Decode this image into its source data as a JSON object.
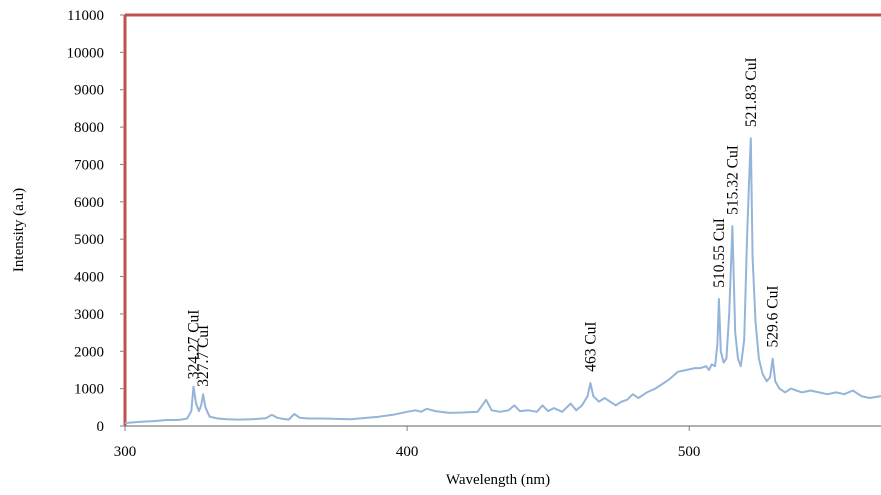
{
  "chart_data": {
    "type": "line",
    "title": "",
    "xlabel": "Wavelength (nm)",
    "ylabel": "Intensity (a.u)",
    "xlim": [
      300,
      568
    ],
    "ylim": [
      0,
      11000
    ],
    "x_ticks": [
      "300",
      "400",
      "500"
    ],
    "y_ticks": [
      "0",
      "1000",
      "2000",
      "3000",
      "4000",
      "5000",
      "6000",
      "7000",
      "8000",
      "9000",
      "10000",
      "11000"
    ],
    "x_tick_values": [
      300,
      400,
      500
    ],
    "y_tick_values": [
      0,
      1000,
      2000,
      3000,
      4000,
      5000,
      6000,
      7000,
      8000,
      9000,
      10000,
      11000
    ],
    "grid": false,
    "series": [
      {
        "color": "#94b4da",
        "x": [
          300,
          305,
          310,
          315,
          318,
          320,
          322,
          323.5,
          324.3,
          325.2,
          326.2,
          327,
          327.7,
          328.5,
          330,
          333,
          336,
          340,
          345,
          350,
          352,
          354,
          356,
          358,
          360,
          362,
          365,
          370,
          380,
          390,
          395,
          400,
          403,
          405,
          407,
          410,
          415,
          420,
          425,
          428,
          430,
          433,
          436,
          438,
          440,
          443,
          446,
          448,
          450,
          452,
          455,
          458,
          460,
          462,
          464,
          465,
          466,
          468,
          470,
          472,
          474,
          476,
          478,
          480,
          482,
          485,
          488,
          490,
          493,
          496,
          499,
          502,
          504,
          506,
          507,
          508,
          509.2,
          510,
          510.55,
          511.2,
          512.2,
          513.2,
          514.2,
          515.32,
          516.3,
          517.3,
          518.3,
          519.5,
          520.5,
          521.2,
          521.83,
          522.5,
          523.5,
          524.7,
          526,
          527.5,
          528.7,
          529.6,
          530.5,
          532,
          534,
          536,
          538,
          540,
          543,
          546,
          549,
          552,
          555,
          558,
          561,
          564,
          568
        ],
        "y": [
          80,
          110,
          130,
          160,
          160,
          170,
          200,
          400,
          1050,
          600,
          400,
          550,
          850,
          500,
          250,
          200,
          180,
          170,
          180,
          210,
          300,
          220,
          190,
          170,
          320,
          220,
          200,
          200,
          180,
          250,
          300,
          380,
          420,
          380,
          460,
          400,
          350,
          360,
          380,
          700,
          420,
          380,
          420,
          550,
          400,
          420,
          380,
          550,
          400,
          480,
          380,
          600,
          420,
          550,
          800,
          1150,
          800,
          650,
          750,
          650,
          550,
          650,
          700,
          850,
          750,
          900,
          1000,
          1100,
          1250,
          1450,
          1500,
          1550,
          1550,
          1600,
          1500,
          1650,
          1600,
          2200,
          3400,
          2000,
          1700,
          1800,
          3000,
          5350,
          2500,
          1800,
          1600,
          2300,
          5000,
          6500,
          7700,
          4500,
          2800,
          1800,
          1400,
          1200,
          1300,
          1800,
          1200,
          1000,
          900,
          1000,
          950,
          900,
          950,
          900,
          850,
          900,
          850,
          950,
          800,
          750,
          800
        ]
      }
    ],
    "annotations": [
      {
        "text": "324.27 CuI",
        "x": 324.27,
        "y": 1250
      },
      {
        "text": "327.7 CuI",
        "x": 327.7,
        "y": 1050
      },
      {
        "text": "463 CuI",
        "x": 465,
        "y": 1450
      },
      {
        "text": "510.55 CuI",
        "x": 510.55,
        "y": 3700
      },
      {
        "text": "515.32 CuI",
        "x": 515.32,
        "y": 5650
      },
      {
        "text": "521.83 CuI",
        "x": 521.83,
        "y": 8000
      },
      {
        "text": "529.6 CuI",
        "x": 529.6,
        "y": 2100
      }
    ],
    "frame_color": "#c0504d"
  }
}
